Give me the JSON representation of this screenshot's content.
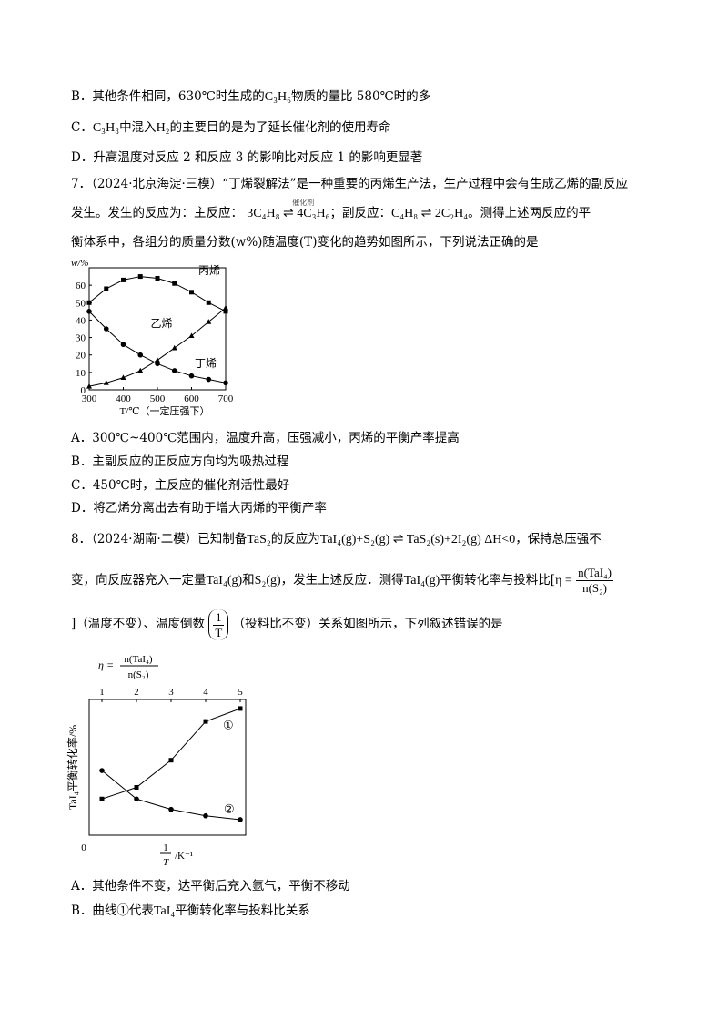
{
  "q6_options": {
    "B": {
      "prefix": "B．其他条件相同，630℃时生成的",
      "chem": "C₃H₆",
      "suffix": "物质的量比 580℃时的多"
    },
    "C": {
      "chem1": "C₃H₈",
      "mid": "中混入",
      "chem2": "H₂",
      "suffix": "的主要目的是为了延长催化剂的使用寿命",
      "prefix": "C．"
    },
    "D": {
      "text": "D．升高温度对反应 2 和反应 3 的影响比对反应 1 的影响更显著"
    }
  },
  "q7": {
    "line1": "7．（2024·北京海淀·三模）“丁烯裂解法”是一种重要的丙烯生产法，生产过程中会有生成乙烯的副反应",
    "line2_prefix": "发生。发生的反应为：主反应：",
    "main_reaction": "3C₄H₈ ⇌ 4C₃H₆",
    "catalyst": "催化剂",
    "line2_mid": "；副反应：",
    "side_reaction": "C₄H₈ ⇌ 2C₂H₄",
    "line2_suffix": "。测得上述两反应的平",
    "line3": "衡体系中，各组分的质量分数(w%)随温度(T)变化的趋势如图所示，下列说法正确的是",
    "options": [
      "A．300℃~400℃范围内，温度升高，压强减小，丙烯的平衡产率提高",
      "B．主副反应的正反应方向均为吸热过程",
      "C．450℃时，主反应的催化剂活性最好",
      "D．将乙烯分离出去有助于增大丙烯的平衡产率"
    ]
  },
  "q8": {
    "line1_prefix": "8．（2024·湖南·二模）已知制备",
    "line1_chem": "TaS₂",
    "line1_mid": "的反应为",
    "reaction": "TaI₄(g)+S₂(g) ⇌ TaS₂(s)+2I₂(g) ΔH<0",
    "line1_suffix": "，保持总压强不",
    "line2_a": "变，向反应器充入一定量",
    "line2_chem1": "TaI₄(g)",
    "line2_b": "和",
    "line2_chem2": "S₂(g)",
    "line2_c": "，发生上述反应．测得",
    "line2_chem3": "TaI₄(g)",
    "line2_d": "平衡转化率与投料比[",
    "eta": "η =",
    "eta_num": "n(TaI₄)",
    "eta_den": "n(S₂)",
    "line3_a": "]（温度不变）、温度倒数",
    "line3_num": "1",
    "line3_den": "T",
    "line3_b": "（投料比不变）关系如图所示，下列叙述错误的是",
    "options": [
      {
        "text": "A．其他条件不变，达平衡后充入氩气，平衡不移动"
      },
      {
        "prefix": "B．曲线①代表",
        "chem": "TaI₄",
        "suffix": "平衡转化率与投料比关系"
      }
    ]
  },
  "chart_data": [
    {
      "type": "line",
      "title": "",
      "ylabel": "w/%",
      "xlabel": "T/℃（一定压强下）",
      "xlim": [
        300,
        700
      ],
      "ylim": [
        0,
        70
      ],
      "xticks": [
        "300",
        "400",
        "500",
        "600",
        "700"
      ],
      "yticks": [
        "0",
        "10",
        "20",
        "30",
        "40",
        "50",
        "60"
      ],
      "series": [
        {
          "name": "丙烯",
          "marker": "square",
          "x": [
            300,
            350,
            400,
            450,
            500,
            550,
            600,
            650,
            700
          ],
          "values": [
            50,
            58,
            63,
            65,
            64,
            61,
            56,
            50,
            45
          ]
        },
        {
          "name": "乙烯",
          "marker": "triangle",
          "x": [
            300,
            350,
            400,
            450,
            500,
            550,
            600,
            650,
            700
          ],
          "values": [
            2,
            4,
            7,
            11,
            17,
            24,
            31,
            39,
            47
          ]
        },
        {
          "name": "丁烯",
          "marker": "circle",
          "x": [
            300,
            350,
            400,
            450,
            500,
            550,
            600,
            650,
            700
          ],
          "values": [
            45,
            35,
            26,
            20,
            15,
            11,
            8,
            6,
            4
          ]
        }
      ]
    },
    {
      "type": "line",
      "top_axis_label": "η = n(TaI₄)/n(S₂)",
      "top_ticks": [
        "1",
        "2",
        "3",
        "4",
        "5"
      ],
      "ylabel": "TaI₄平衡转化率/%",
      "xlabel": "1/T /K⁻¹",
      "origin_label": "0",
      "series": [
        {
          "name": "①",
          "marker": "square",
          "x": [
            1.0,
            2.0,
            3.0,
            4.0,
            5.0
          ],
          "values": [
            28,
            37,
            58,
            88,
            98
          ]
        },
        {
          "name": "②",
          "marker": "circle",
          "x": [
            1.0,
            2.0,
            3.0,
            4.0,
            5.0
          ],
          "values": [
            50,
            28,
            20,
            15,
            12
          ]
        }
      ]
    }
  ]
}
